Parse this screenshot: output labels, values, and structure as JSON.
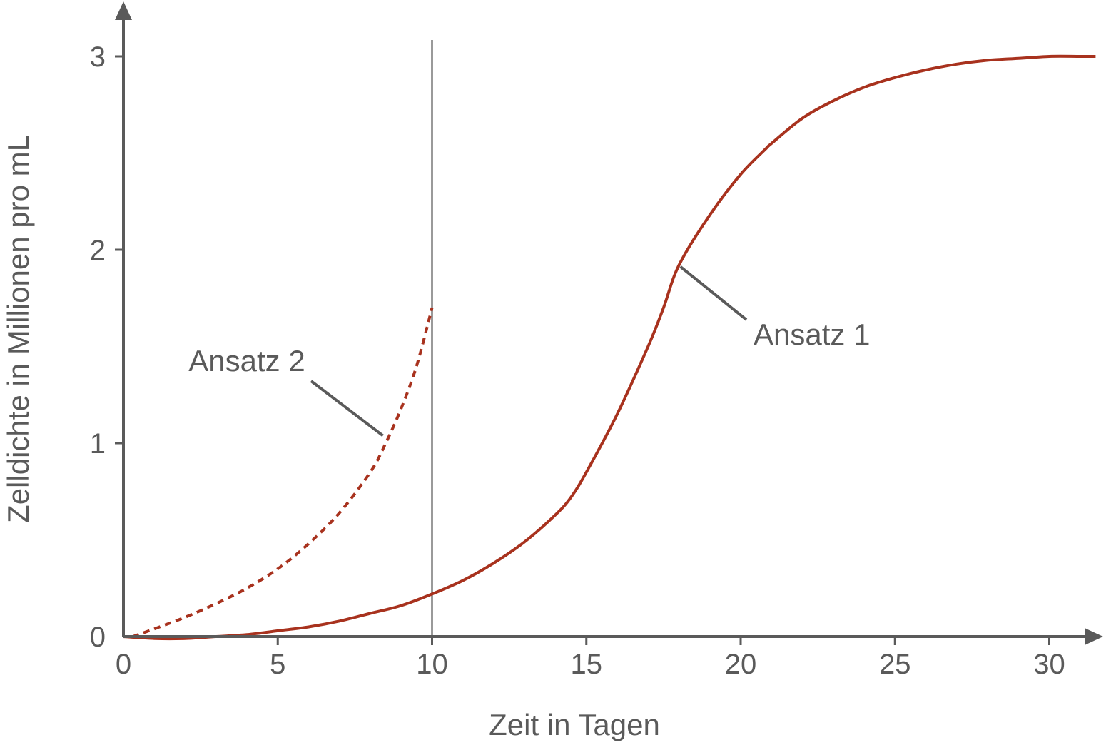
{
  "chart_data": {
    "type": "line",
    "title": "",
    "xlabel": "Zeit in Tagen",
    "ylabel": "Zelldichte in Millionen pro mL",
    "xlim": [
      0,
      32
    ],
    "ylim": [
      0,
      3.1
    ],
    "xticks": [
      0,
      5,
      10,
      15,
      20,
      25,
      30
    ],
    "yticks": [
      0,
      1,
      2,
      3
    ],
    "grid": false,
    "vertical_line": {
      "x": 10
    },
    "series": [
      {
        "name": "Ansatz 1",
        "style": "solid",
        "color": "#a8321e",
        "x": [
          0,
          1,
          2,
          3,
          4,
          5,
          6,
          7,
          8,
          9,
          10,
          11,
          12,
          13,
          14,
          14.5,
          15,
          16,
          17,
          17.5,
          18,
          19,
          20,
          20.8,
          21,
          22,
          23,
          24,
          25,
          26,
          27,
          28,
          29,
          30,
          31,
          31.5
        ],
        "y": [
          0.0,
          -0.01,
          -0.01,
          0.0,
          0.01,
          0.03,
          0.05,
          0.08,
          0.12,
          0.16,
          0.22,
          0.29,
          0.38,
          0.49,
          0.63,
          0.72,
          0.85,
          1.15,
          1.5,
          1.7,
          1.92,
          2.18,
          2.39,
          2.52,
          2.55,
          2.68,
          2.77,
          2.84,
          2.89,
          2.93,
          2.96,
          2.98,
          2.99,
          3.0,
          3.0,
          3.0
        ]
      },
      {
        "name": "Ansatz 2",
        "style": "dashed",
        "color": "#a8321e",
        "x": [
          0.3,
          1,
          2,
          3,
          4,
          5,
          6,
          7,
          8,
          8.5,
          9,
          9.5,
          10
        ],
        "y": [
          0.0,
          0.04,
          0.1,
          0.17,
          0.25,
          0.35,
          0.48,
          0.64,
          0.85,
          1.0,
          1.18,
          1.4,
          1.7
        ]
      }
    ],
    "annotations": [
      {
        "text": "Ansatz 1",
        "series": "Ansatz 1",
        "point": [
          18,
          1.92
        ]
      },
      {
        "text": "Ansatz 2",
        "series": "Ansatz 2",
        "point": [
          8.5,
          1.05
        ]
      }
    ]
  }
}
